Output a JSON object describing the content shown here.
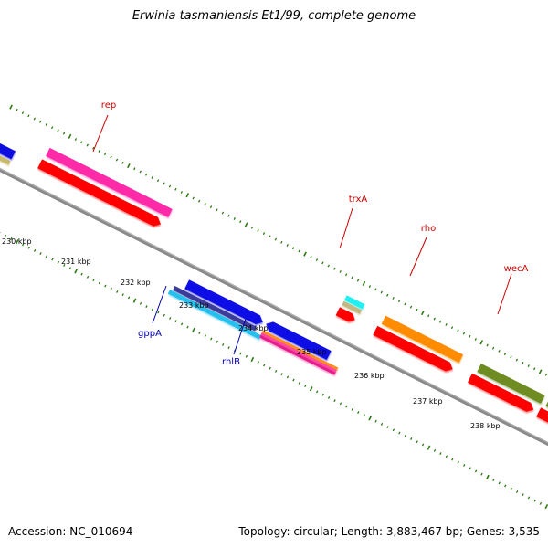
{
  "title": "Erwinia tasmaniensis Et1/99, complete genome",
  "footer": {
    "accession": "Accession: NC_010694",
    "topology": "Topology: circular; Length: 3,883,467 bp; Genes: 3,535"
  },
  "ticks": [
    "230 kbp",
    "231 kbp",
    "232 kbp",
    "233 kbp",
    "234 kbp",
    "235 kbp",
    "236 kbp",
    "237 kbp",
    "238 kbp"
  ],
  "gene_labels": {
    "rep": "rep",
    "trxA": "trxA",
    "rho": "rho",
    "wecA": "wecA",
    "gppA": "gppA",
    "rhlB": "rhlB"
  },
  "colors": {
    "label_red": "#cc0000",
    "label_blue": "#0000aa",
    "tick_green": "#2a7a10",
    "backbone": "#8a8a8a"
  }
}
